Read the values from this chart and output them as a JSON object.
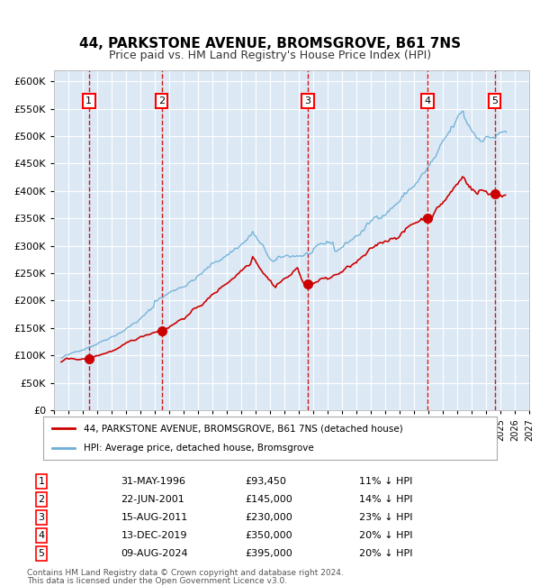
{
  "title": "44, PARKSTONE AVENUE, BROMSGROVE, B61 7NS",
  "subtitle": "Price paid vs. HM Land Registry's House Price Index (HPI)",
  "background_color": "#dce9f5",
  "plot_bg_color": "#dce9f5",
  "hpi_color": "#6baed6",
  "price_color": "#cc0000",
  "marker_color": "#cc0000",
  "dashed_line_color": "#cc0000",
  "grid_color": "#ffffff",
  "ylabel_prefix": "£",
  "ylim": [
    0,
    620000
  ],
  "yticks": [
    0,
    50000,
    100000,
    150000,
    200000,
    250000,
    300000,
    350000,
    400000,
    450000,
    500000,
    550000,
    600000
  ],
  "ytick_labels": [
    "£0",
    "£50K",
    "£100K",
    "£150K",
    "£200K",
    "£250K",
    "£300K",
    "£350K",
    "£400K",
    "£450K",
    "£500K",
    "£550K",
    "£600K"
  ],
  "xlim_start": 1994.0,
  "xlim_end": 2027.0,
  "sale_years": [
    1996.42,
    2001.47,
    2011.62,
    2019.95,
    2024.6
  ],
  "sale_prices": [
    93450,
    145000,
    230000,
    350000,
    395000
  ],
  "sale_labels": [
    "1",
    "2",
    "3",
    "4",
    "5"
  ],
  "sale_dates": [
    "31-MAY-1996",
    "22-JUN-2001",
    "15-AUG-2011",
    "13-DEC-2019",
    "09-AUG-2024"
  ],
  "sale_pcts": [
    "11% ↓ HPI",
    "14% ↓ HPI",
    "23% ↓ HPI",
    "20% ↓ HPI",
    "20% ↓ HPI"
  ],
  "legend_line1": "44, PARKSTONE AVENUE, BROMSGROVE, B61 7NS (detached house)",
  "legend_line2": "HPI: Average price, detached house, Bromsgrove",
  "footer_line1": "Contains HM Land Registry data © Crown copyright and database right 2024.",
  "footer_line2": "This data is licensed under the Open Government Licence v3.0."
}
